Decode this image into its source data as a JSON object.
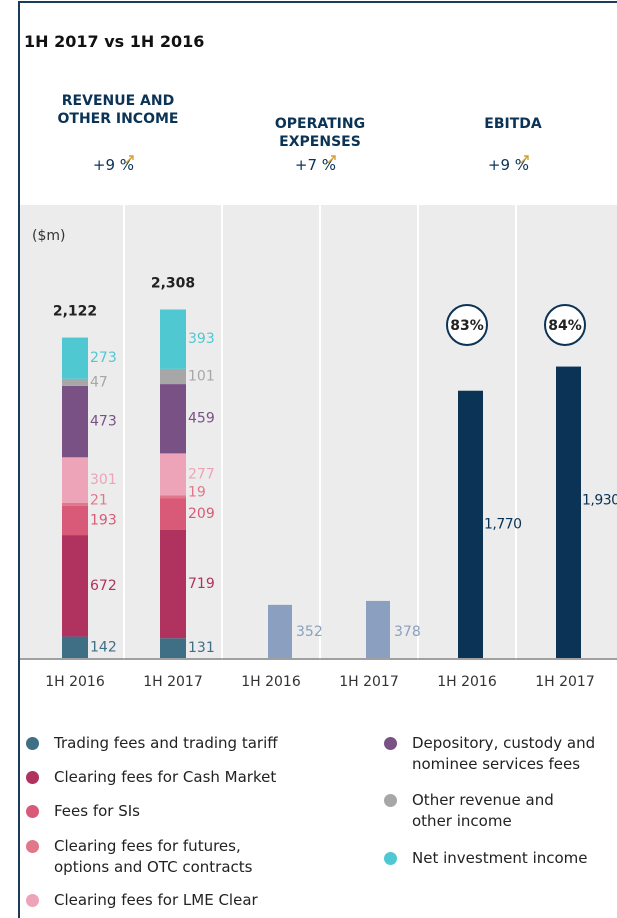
{
  "title": "1H 2017 vs 1H 2016",
  "chart_data": {
    "type": "bar",
    "unit_label": "($m)",
    "ylim": [
      0,
      3000
    ],
    "categories": [
      "1H 2016",
      "1H 2017",
      "1H 2016",
      "1H 2017",
      "1H 2016",
      "1H 2017"
    ],
    "groups": [
      {
        "name": "REVENUE AND OTHER INCOME",
        "change": "+9 %"
      },
      {
        "name": "OPERATING EXPENSES",
        "change": "+7 %"
      },
      {
        "name": "EBITDA",
        "change": "+9 %"
      }
    ],
    "revenue": {
      "series": [
        {
          "name": "Trading fees and trading tariff",
          "color": "#3f6f85",
          "values": [
            142,
            131
          ]
        },
        {
          "name": "Clearing fees for Cash Market",
          "color": "#b0325e",
          "values": [
            672,
            719
          ]
        },
        {
          "name": "Fees for SIs",
          "color": "#d95a78",
          "values": [
            193,
            209
          ]
        },
        {
          "name": "Clearing fees for futures, options and OTC contracts",
          "color": "#e0788a",
          "values": [
            21,
            19
          ]
        },
        {
          "name": "Clearing fees for LME Clear",
          "color": "#eda3b8",
          "values": [
            301,
            277
          ]
        },
        {
          "name": "Depository, custody and nominee services fees",
          "color": "#7a5185",
          "values": [
            473,
            459
          ]
        },
        {
          "name": "Other revenue and other income",
          "color": "#a7a7a7",
          "values": [
            47,
            101
          ]
        },
        {
          "name": "Net investment income",
          "color": "#4fc8d2",
          "values": [
            273,
            393
          ]
        }
      ],
      "totals": [
        2122,
        2308
      ],
      "total_labels": [
        "2,122",
        "2,308"
      ]
    },
    "operating_expenses": {
      "color": "#8b9fc0",
      "values": [
        352,
        378
      ]
    },
    "ebitda": {
      "color": "#0b3356",
      "values": [
        1770,
        1930
      ],
      "value_labels": [
        "1,770",
        "1,930"
      ],
      "margins": [
        83,
        84
      ],
      "margin_labels": [
        "83%",
        "84%"
      ]
    }
  }
}
